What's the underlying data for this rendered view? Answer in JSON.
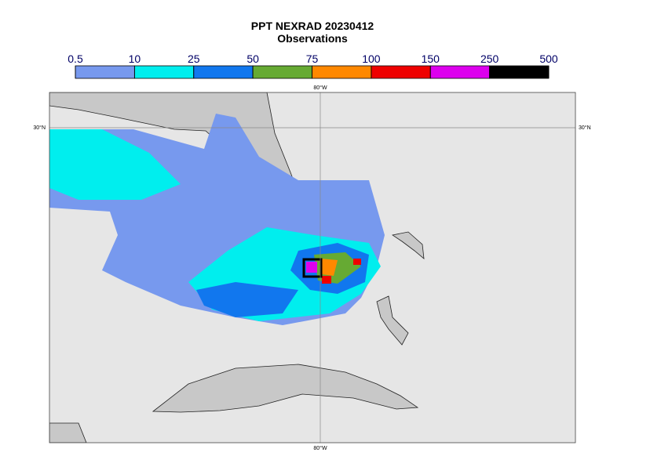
{
  "title": "PPT NEXRAD 20230412",
  "subtitle": "Observations",
  "colorbar": {
    "bounds": [
      0.5,
      10,
      25,
      50,
      75,
      100,
      150,
      250,
      500
    ],
    "colors": [
      "#7799ee",
      "#00eeee",
      "#1177ee",
      "#66aa33",
      "#ff8800",
      "#ee0000",
      "#dd00ee",
      "#000000"
    ]
  },
  "graticule": {
    "lon_top": "80°W",
    "lon_bottom": "80°W",
    "lat_left": "30°N",
    "lat_right": "30°N"
  }
}
